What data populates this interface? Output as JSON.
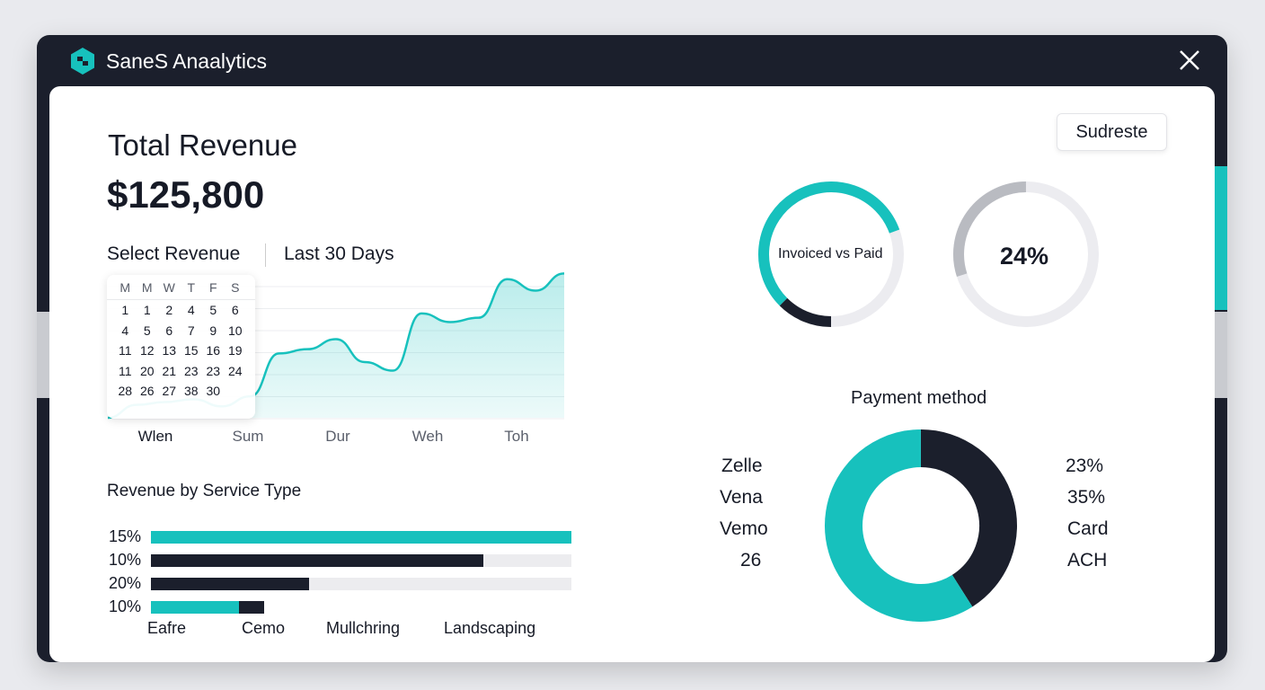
{
  "app": {
    "title": "SaneS Anaalytics"
  },
  "header_button": "Sudreste",
  "revenue": {
    "label": "Total Revenue",
    "value": "$125,800",
    "select_label": "Select Revenue",
    "range": "Last 30 Days"
  },
  "calendar": {
    "days": [
      "M",
      "M",
      "W",
      "T",
      "F",
      "S"
    ],
    "weeks": [
      [
        "1",
        "1",
        "2",
        "4",
        "5",
        "6"
      ],
      [
        "4",
        "5",
        "6",
        "7",
        "9",
        "10"
      ],
      [
        "11",
        "12",
        "13",
        "15",
        "16",
        "19"
      ],
      [
        "11",
        "20",
        "21",
        "23",
        "23",
        "24"
      ],
      [
        "28",
        "26",
        "27",
        "38",
        "30",
        ""
      ]
    ]
  },
  "chart_data": [
    {
      "type": "area",
      "title": "Revenue",
      "x_labels": [
        "Wlen",
        "Sum",
        "Dur",
        "Weh",
        "Toh"
      ],
      "values": [
        0,
        9,
        11,
        13,
        8,
        15,
        45,
        48,
        55,
        39,
        33,
        73,
        67,
        70,
        97,
        89,
        101
      ],
      "ylim": [
        0,
        105
      ],
      "grid": true,
      "color": "#17c1bd"
    },
    {
      "type": "bar",
      "title": "Revenue by Service Type",
      "row_labels": [
        "15%",
        "10%",
        "20%",
        "10%"
      ],
      "categories": [
        "Eafre",
        "Cemo",
        "Mullchring",
        "Landscaping"
      ],
      "series": [
        {
          "name": "teal",
          "values": [
            1.0,
            0,
            0,
            0.21
          ]
        },
        {
          "name": "dark",
          "values": [
            0,
            0.79,
            0.375,
            0.06
          ]
        }
      ]
    },
    {
      "type": "pie",
      "title": "Invoiced vs Paid",
      "segments": [
        {
          "name": "dark",
          "start": 0.5,
          "value": 0.125
        },
        {
          "name": "teal",
          "start": 0.625,
          "value": 0.57
        }
      ]
    },
    {
      "type": "pie",
      "title": "24%",
      "label": "24%",
      "value": 0.24
    },
    {
      "type": "pie",
      "title": "Payment method",
      "left_labels": [
        "Zelle",
        "Vena",
        "Vemo",
        "26"
      ],
      "right_labels": [
        "23%",
        "35%",
        "Card",
        "ACH"
      ],
      "values": [
        0.41,
        0.59
      ],
      "colors": [
        "#1b1f2c",
        "#17c1bd"
      ]
    }
  ],
  "colors": {
    "teal": "#17c1bd",
    "dark": "#1b1f2c",
    "grey": "#b9bbc1",
    "track": "#ececef"
  }
}
